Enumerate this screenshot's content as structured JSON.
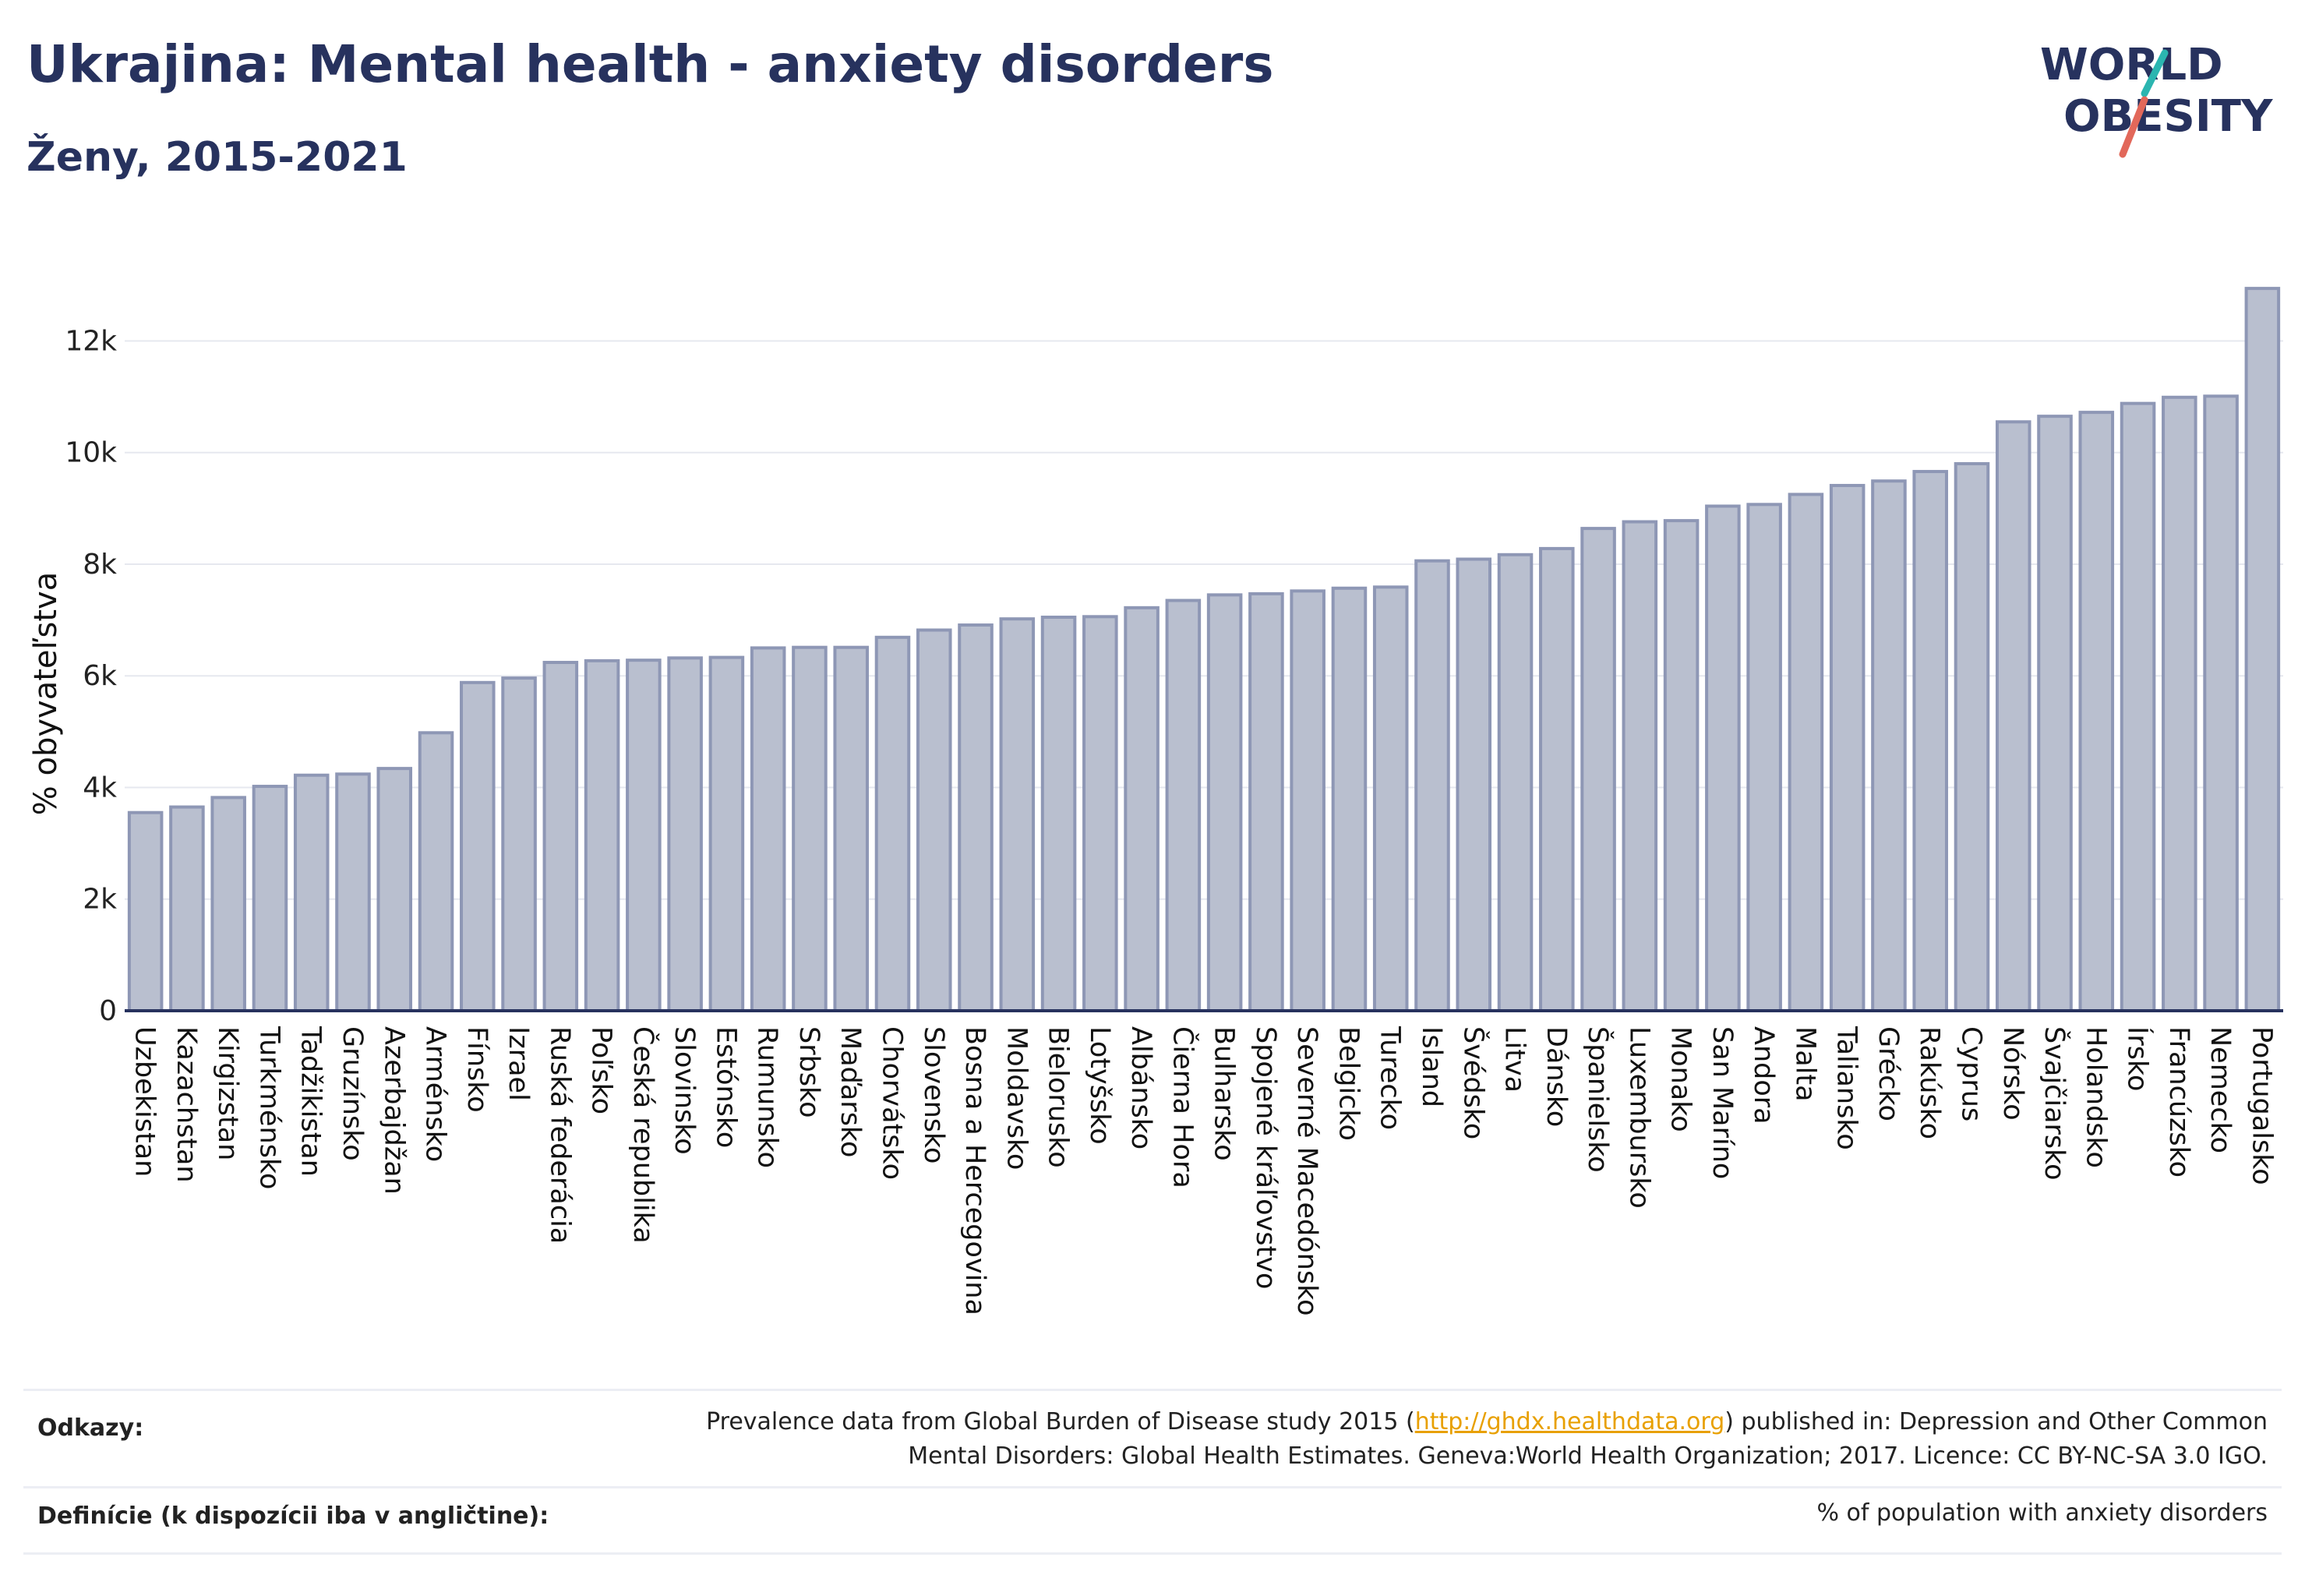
{
  "header": {
    "title": "Ukrajina: Mental health - anxiety disorders",
    "subtitle": "Ženy, 2015-2021"
  },
  "logo": {
    "line1": "WORLD",
    "line2": "OBESITY"
  },
  "colors": {
    "bar_fill": "#b9bfcf",
    "bar_stroke": "#8e97b5",
    "axis": "#27325e",
    "grid": "#e6e8ef",
    "accent_teal": "#2bb5b0",
    "accent_red": "#e2685a",
    "link": "#e8a000"
  },
  "chart_data": {
    "type": "bar",
    "ylabel": "% obyvateľstva",
    "ylim": [
      0,
      13500
    ],
    "yticks": [
      0,
      2000,
      4000,
      6000,
      8000,
      10000,
      12000
    ],
    "ytick_labels": [
      "0",
      "2k",
      "4k",
      "6k",
      "8k",
      "10k",
      "12k"
    ],
    "grid": true,
    "categories": [
      "Uzbekistan",
      "Kazachstan",
      "Kirgizstan",
      "Turkménsko",
      "Tadžikistan",
      "Gruzínsko",
      "Azerbajdžan",
      "Arménsko",
      "Fínsko",
      "Izrael",
      "Ruská federácia",
      "Poľsko",
      "Česká republika",
      "Slovinsko",
      "Estónsko",
      "Rumunsko",
      "Srbsko",
      "Maďarsko",
      "Chorvátsko",
      "Slovensko",
      "Bosna a Hercegovina",
      "Moldavsko",
      "Bielorusko",
      "Lotyšsko",
      "Albánsko",
      "Čierna Hora",
      "Bulharsko",
      "Spojené kráľovstvo",
      "Severné Macedónsko",
      "Belgicko",
      "Turecko",
      "Island",
      "Švédsko",
      "Litva",
      "Dánsko",
      "Španielsko",
      "Luxembursko",
      "Monako",
      "San Maríno",
      "Andora",
      "Malta",
      "Taliansko",
      "Grécko",
      "Rakúsko",
      "Cyprus",
      "Nórsko",
      "Švajčiarsko",
      "Holandsko",
      "Írsko",
      "Francúzsko",
      "Nemecko",
      "Portugalsko"
    ],
    "values": [
      3550,
      3650,
      3820,
      4020,
      4220,
      4240,
      4340,
      4980,
      5880,
      5960,
      6240,
      6270,
      6280,
      6320,
      6330,
      6500,
      6510,
      6510,
      6690,
      6820,
      6910,
      7020,
      7050,
      7060,
      7220,
      7350,
      7450,
      7470,
      7520,
      7570,
      7590,
      8060,
      8090,
      8170,
      8280,
      8640,
      8760,
      8780,
      9040,
      9070,
      9250,
      9410,
      9490,
      9660,
      9800,
      10550,
      10650,
      10720,
      10880,
      10990,
      11010,
      12940
    ]
  },
  "footer": {
    "refs_label": "Odkazy:",
    "refs_pre": "Prevalence data from Global Burden of Disease study 2015 (",
    "refs_link": "http://ghdx.healthdata.org",
    "refs_post": ") published in: Depression and Other Common",
    "refs_line2": "Mental Disorders: Global Health Estimates. Geneva:World Health Organization; 2017. Licence: CC BY-NC-SA 3.0 IGO.",
    "def_label": "Definície (k dispozícii iba v angličtine):",
    "def_text": "% of population with anxiety disorders"
  }
}
